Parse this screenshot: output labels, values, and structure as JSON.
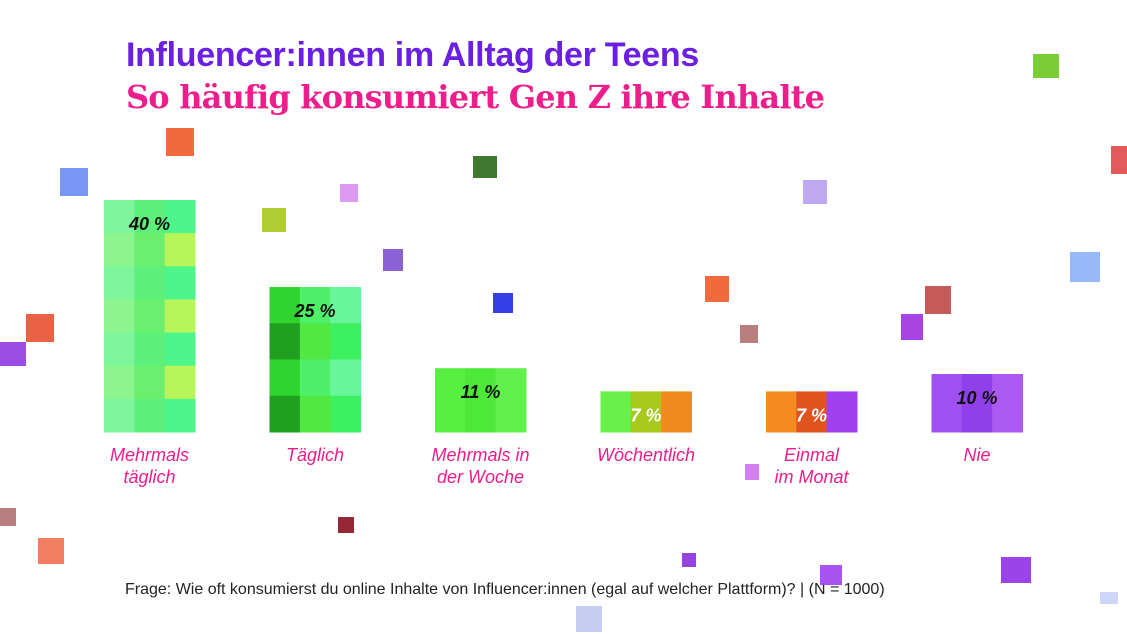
{
  "title": "Influencer:innen im Alltag der Teens",
  "subtitle": "So häufig konsumiert Gen Z ihre Inhalte",
  "footnote": "Frage: Wie oft konsumierst du online Inhalte von Influencer:innen (egal auf welcher Plattform)? | (N = 1000)",
  "colors": {
    "title": "#6b1fe0",
    "subtitle": "#ec1e8c",
    "category_label": "#ec1e8c",
    "value_label": "#111111"
  },
  "chart_data": {
    "type": "bar",
    "categories": [
      [
        "Mehrmals",
        "täglich"
      ],
      [
        "Täglich"
      ],
      [
        "Mehrmals in",
        "der Woche"
      ],
      [
        "Wöchentlich"
      ],
      [
        "Einmal",
        "im Monat"
      ],
      [
        "Nie"
      ]
    ],
    "values": [
      40,
      25,
      11,
      7,
      7,
      10
    ],
    "value_labels": [
      "40 %",
      "25 %",
      "11 %",
      "7 %",
      "7 %",
      "10 %"
    ],
    "unit": "%",
    "ylim": [
      0,
      40
    ],
    "grid": false,
    "legend": "none",
    "bar_palettes": [
      [
        "#7ef59a",
        "#5ef07a",
        "#4df58a",
        "#8df58d",
        "#6af06e",
        "#b7f55a"
      ],
      [
        "#2fd42f",
        "#4ef06a",
        "#69f59a",
        "#1fa01f",
        "#52e842",
        "#3cf060"
      ],
      [
        "#58f040",
        "#4ee83a",
        "#62f04c"
      ],
      [
        "#6af04a",
        "#a8c81e",
        "#f08a1e"
      ],
      [
        "#f58a1e",
        "#e0521e",
        "#a040f0"
      ],
      [
        "#a050f0",
        "#9040ea",
        "#ac5af2"
      ]
    ],
    "value_label_colors": [
      "#111111",
      "#111111",
      "#111111",
      "#ffffff",
      "#ffffff",
      "#111111"
    ]
  }
}
